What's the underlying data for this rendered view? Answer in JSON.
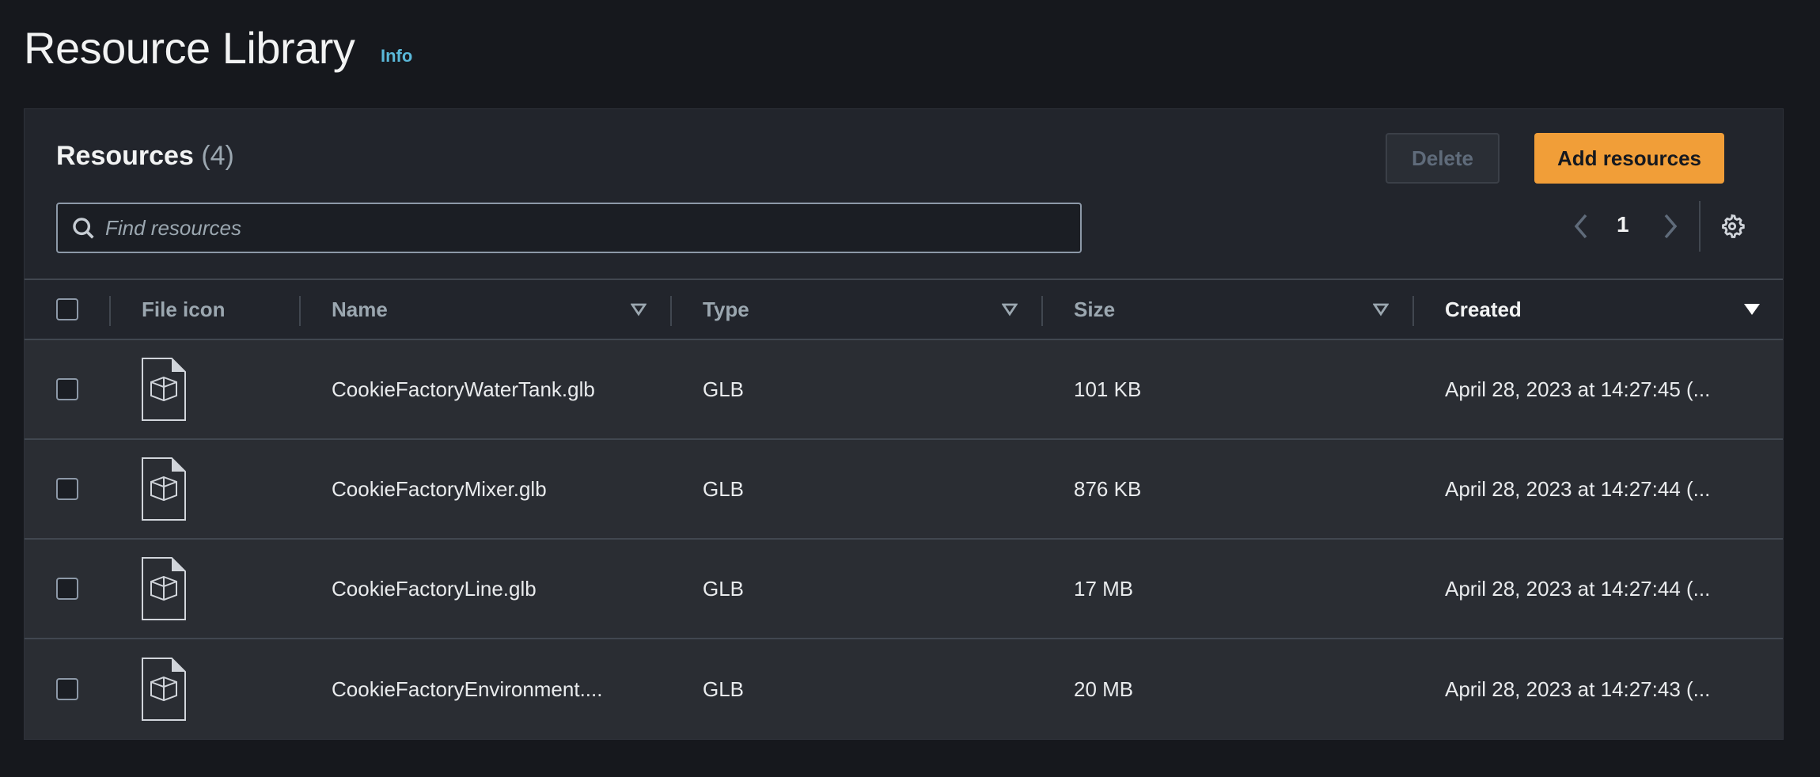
{
  "page": {
    "title": "Resource Library",
    "info_link": "Info"
  },
  "panel": {
    "title": "Resources",
    "count": "(4)",
    "delete_label": "Delete",
    "add_label": "Add resources",
    "search_placeholder": "Find resources",
    "pagination": {
      "current_page": "1"
    },
    "accent_color": "#f19e38"
  },
  "table": {
    "columns": [
      "File icon",
      "Name",
      "Type",
      "Size",
      "Created"
    ],
    "sorted_column": "Created",
    "rows": [
      {
        "icon": "3d-model-file-icon",
        "name": "CookieFactoryWaterTank.glb",
        "type": "GLB",
        "size": "101 KB",
        "created": "April 28, 2023 at 14:27:45 (..."
      },
      {
        "icon": "3d-model-file-icon",
        "name": "CookieFactoryMixer.glb",
        "type": "GLB",
        "size": "876 KB",
        "created": "April 28, 2023 at 14:27:44 (..."
      },
      {
        "icon": "3d-model-file-icon",
        "name": "CookieFactoryLine.glb",
        "type": "GLB",
        "size": "17 MB",
        "created": "April 28, 2023 at 14:27:44 (..."
      },
      {
        "icon": "3d-model-file-icon",
        "name": "CookieFactoryEnvironment....",
        "type": "GLB",
        "size": "20 MB",
        "created": "April 28, 2023 at 14:27:43 (..."
      }
    ]
  }
}
